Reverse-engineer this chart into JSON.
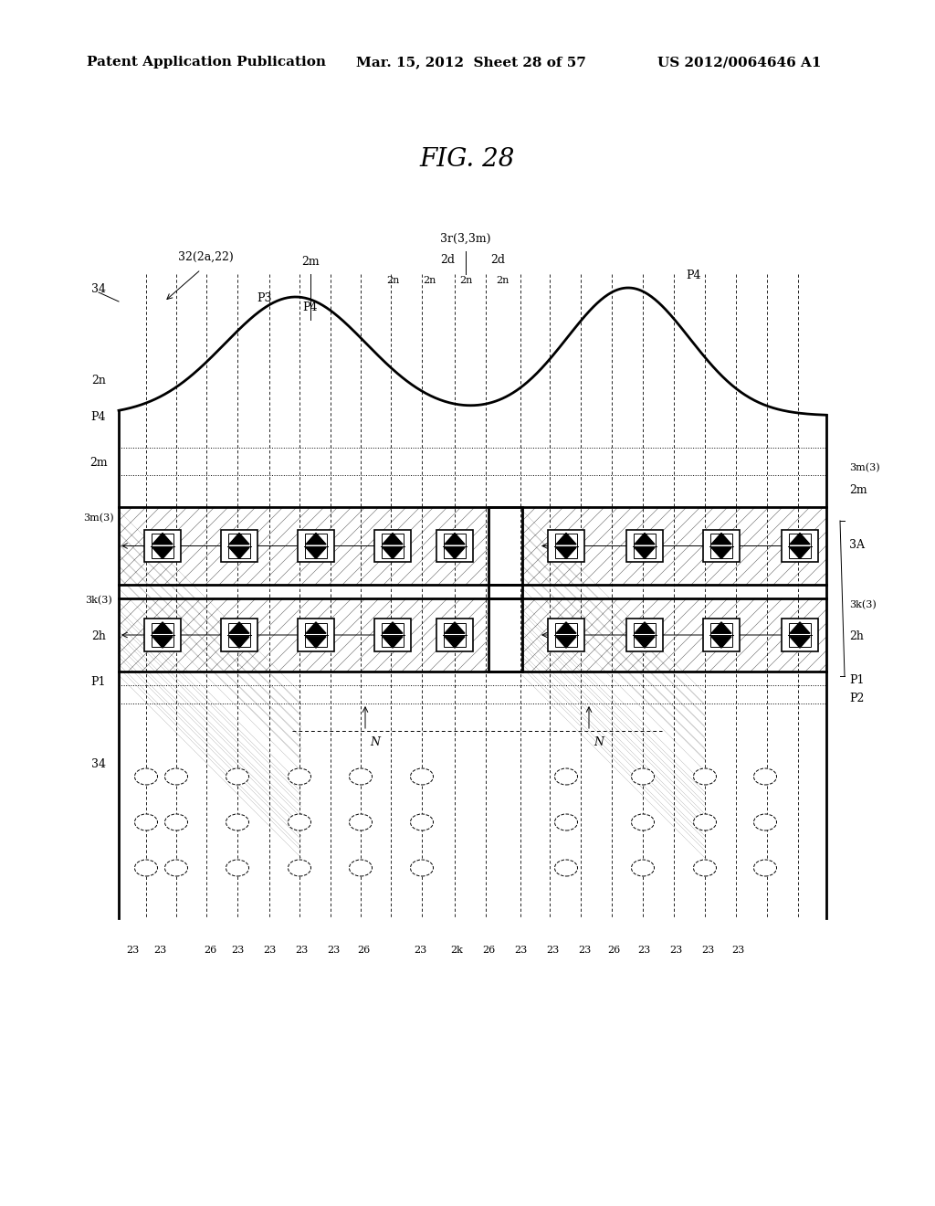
{
  "title": "FIG. 28",
  "header_left": "Patent Application Publication",
  "header_mid": "Mar. 15, 2012  Sheet 28 of 57",
  "header_right": "US 2012/0064646 A1",
  "bg_color": "#ffffff",
  "fig_title_fontsize": 20,
  "header_fontsize": 11
}
